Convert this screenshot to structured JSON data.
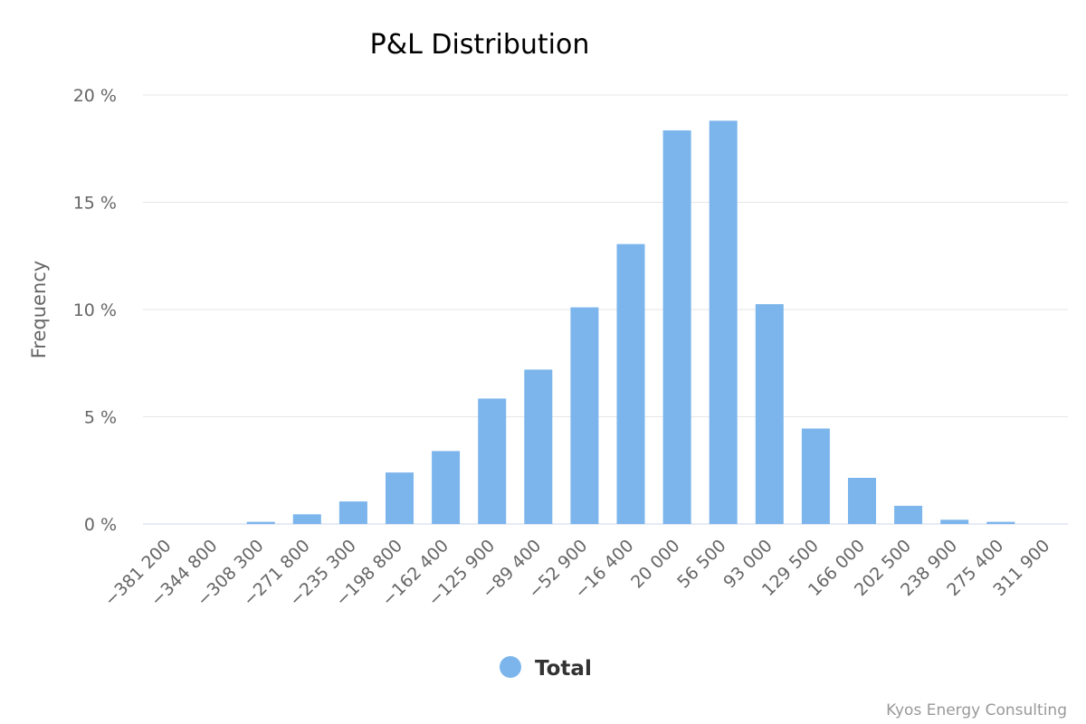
{
  "credits": "Kyos Energy Consulting",
  "legend": {
    "label": "Total"
  },
  "colors": {
    "bar": "#7cb5ec",
    "text": "#666666",
    "grid": "#e6e6e6"
  },
  "chart_data": {
    "type": "bar",
    "title": "P&L Distribution",
    "xlabel": "",
    "ylabel": "Frequency",
    "ylim": [
      0,
      20
    ],
    "yticks": [
      0,
      5,
      10,
      15,
      20
    ],
    "ytick_labels": [
      "0 %",
      "5 %",
      "10 %",
      "15 %",
      "20 %"
    ],
    "grid": true,
    "legend_position": "bottom-center",
    "categories": [
      "−381 200",
      "−344 800",
      "−308 300",
      "−271 800",
      "−235 300",
      "−198 800",
      "−162 400",
      "−125 900",
      "−89 400",
      "−52 900",
      "−16 400",
      "20 000",
      "56 500",
      "93 000",
      "129 500",
      "166 000",
      "202 500",
      "238 900",
      "275 400",
      "311 900"
    ],
    "series": [
      {
        "name": "Total",
        "values": [
          0,
          0,
          0.1,
          0.45,
          1.05,
          2.4,
          3.4,
          5.85,
          7.2,
          10.1,
          13.05,
          18.35,
          18.8,
          10.25,
          4.45,
          2.15,
          0.85,
          0.2,
          0.1,
          0
        ]
      }
    ]
  }
}
